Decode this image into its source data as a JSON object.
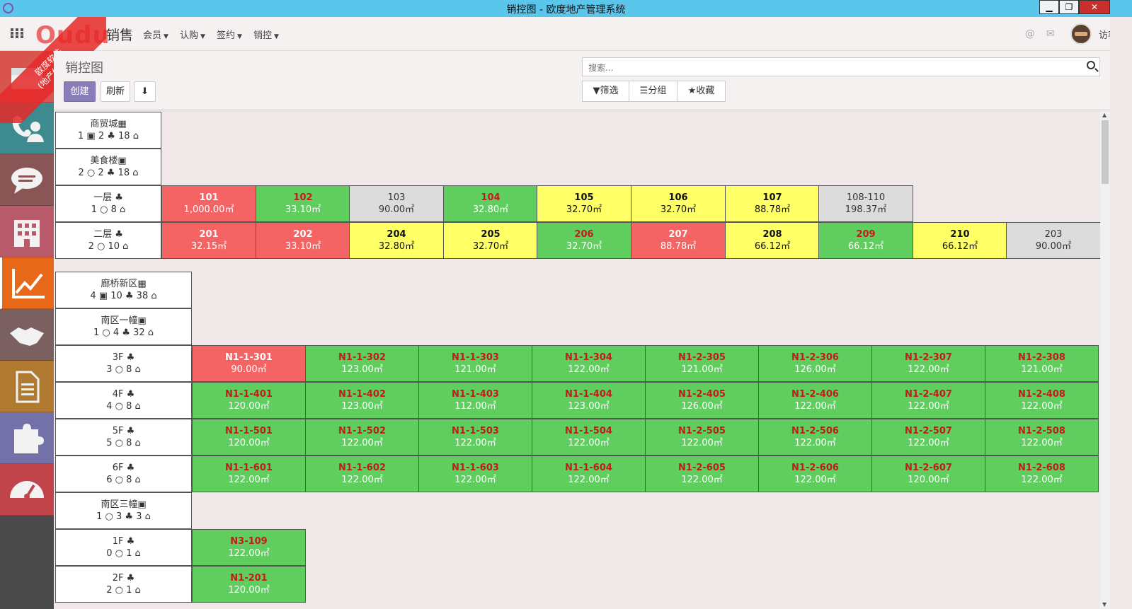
{
  "window": {
    "title": "销控图 - 欧度地产管理系统",
    "min": "▁",
    "max": "❐",
    "close": "✕"
  },
  "brand": {
    "logo": "Oudu",
    "ribbon_line1": "欧度软件",
    "ribbon_line2": "(地产体验版)",
    "module": "销售"
  },
  "menus": [
    "会员",
    "认购",
    "签约",
    "销控"
  ],
  "user": {
    "name": "访客"
  },
  "header": {
    "title": "销控图",
    "create": "创建",
    "refresh": "刷新",
    "download": "⬇"
  },
  "search": {
    "placeholder": "搜索..."
  },
  "filters": {
    "filter": "▼筛选",
    "group": "☰分组",
    "favorites": "★收藏"
  },
  "sidebar": {
    "icons": [
      "inbox-icon",
      "phone-contact-icon",
      "chat-icon",
      "building-icon",
      "chart-icon",
      "handshake-icon",
      "document-icon",
      "puzzle-icon",
      "dashboard-icon"
    ]
  },
  "project1": {
    "name": "商贸城▦",
    "stats": "1 ▣ 2 ♣ 18 ⌂",
    "building": {
      "name": "美食楼▣",
      "stats": "2 ○ 2 ♣ 18 ⌂"
    },
    "floors": [
      {
        "name": "一层 ♣",
        "stats": "1 ○ 8 ⌂",
        "units": [
          {
            "no": "101",
            "area": "1,000.00㎡",
            "status": "red"
          },
          {
            "no": "102",
            "area": "33.10㎡",
            "status": "green"
          },
          {
            "no": "103",
            "area": "90.00㎡",
            "status": "gray"
          },
          {
            "no": "104",
            "area": "32.80㎡",
            "status": "green"
          },
          {
            "no": "105",
            "area": "32.70㎡",
            "status": "yellow"
          },
          {
            "no": "106",
            "area": "32.70㎡",
            "status": "yellow"
          },
          {
            "no": "107",
            "area": "88.78㎡",
            "status": "yellow"
          },
          {
            "no": "108-110",
            "area": "198.37㎡",
            "status": "gray"
          }
        ]
      },
      {
        "name": "二层 ♣",
        "stats": "2 ○ 10 ⌂",
        "units": [
          {
            "no": "201",
            "area": "32.15㎡",
            "status": "red"
          },
          {
            "no": "202",
            "area": "33.10㎡",
            "status": "red"
          },
          {
            "no": "204",
            "area": "32.80㎡",
            "status": "yellow"
          },
          {
            "no": "205",
            "area": "32.70㎡",
            "status": "yellow"
          },
          {
            "no": "206",
            "area": "32.70㎡",
            "status": "green"
          },
          {
            "no": "207",
            "area": "88.78㎡",
            "status": "red"
          },
          {
            "no": "208",
            "area": "66.12㎡",
            "status": "yellow"
          },
          {
            "no": "209",
            "area": "66.12㎡",
            "status": "green"
          },
          {
            "no": "210",
            "area": "66.12㎡",
            "status": "yellow"
          },
          {
            "no": "203",
            "area": "90.00㎡",
            "status": "gray"
          }
        ]
      }
    ]
  },
  "project2": {
    "name": "廊桥新区▦",
    "stats": "4 ▣ 10 ♣ 38 ⌂",
    "building1": {
      "name": "南区一幢▣",
      "stats": "1 ○ 4 ♣ 32 ⌂"
    },
    "floors1": [
      {
        "name": "3F ♣",
        "stats": "3 ○ 8 ⌂",
        "units": [
          {
            "no": "N1-1-301",
            "area": "90.00㎡",
            "status": "red"
          },
          {
            "no": "N1-1-302",
            "area": "123.00㎡",
            "status": "green"
          },
          {
            "no": "N1-1-303",
            "area": "121.00㎡",
            "status": "green"
          },
          {
            "no": "N1-1-304",
            "area": "122.00㎡",
            "status": "green"
          },
          {
            "no": "N1-2-305",
            "area": "121.00㎡",
            "status": "green"
          },
          {
            "no": "N1-2-306",
            "area": "126.00㎡",
            "status": "green"
          },
          {
            "no": "N1-2-307",
            "area": "122.00㎡",
            "status": "green"
          },
          {
            "no": "N1-2-308",
            "area": "121.00㎡",
            "status": "green"
          }
        ]
      },
      {
        "name": "4F ♣",
        "stats": "4 ○ 8 ⌂",
        "units": [
          {
            "no": "N1-1-401",
            "area": "120.00㎡",
            "status": "green"
          },
          {
            "no": "N1-1-402",
            "area": "123.00㎡",
            "status": "green"
          },
          {
            "no": "N1-1-403",
            "area": "112.00㎡",
            "status": "green"
          },
          {
            "no": "N1-1-404",
            "area": "123.00㎡",
            "status": "green"
          },
          {
            "no": "N1-2-405",
            "area": "126.00㎡",
            "status": "green"
          },
          {
            "no": "N1-2-406",
            "area": "122.00㎡",
            "status": "green"
          },
          {
            "no": "N1-2-407",
            "area": "122.00㎡",
            "status": "green"
          },
          {
            "no": "N1-2-408",
            "area": "122.00㎡",
            "status": "green"
          }
        ]
      },
      {
        "name": "5F ♣",
        "stats": "5 ○ 8 ⌂",
        "units": [
          {
            "no": "N1-1-501",
            "area": "120.00㎡",
            "status": "green"
          },
          {
            "no": "N1-1-502",
            "area": "122.00㎡",
            "status": "green"
          },
          {
            "no": "N1-1-503",
            "area": "122.00㎡",
            "status": "green"
          },
          {
            "no": "N1-1-504",
            "area": "122.00㎡",
            "status": "green"
          },
          {
            "no": "N1-2-505",
            "area": "122.00㎡",
            "status": "green"
          },
          {
            "no": "N1-2-506",
            "area": "122.00㎡",
            "status": "green"
          },
          {
            "no": "N1-2-507",
            "area": "122.00㎡",
            "status": "green"
          },
          {
            "no": "N1-2-508",
            "area": "122.00㎡",
            "status": "green"
          }
        ]
      },
      {
        "name": "6F ♣",
        "stats": "6 ○ 8 ⌂",
        "units": [
          {
            "no": "N1-1-601",
            "area": "122.00㎡",
            "status": "green"
          },
          {
            "no": "N1-1-602",
            "area": "122.00㎡",
            "status": "green"
          },
          {
            "no": "N1-1-603",
            "area": "122.00㎡",
            "status": "green"
          },
          {
            "no": "N1-1-604",
            "area": "122.00㎡",
            "status": "green"
          },
          {
            "no": "N1-2-605",
            "area": "122.00㎡",
            "status": "green"
          },
          {
            "no": "N1-2-606",
            "area": "122.00㎡",
            "status": "green"
          },
          {
            "no": "N1-2-607",
            "area": "120.00㎡",
            "status": "green"
          },
          {
            "no": "N1-2-608",
            "area": "122.00㎡",
            "status": "green"
          }
        ]
      }
    ],
    "building3": {
      "name": "南区三幢▣",
      "stats": "1 ○ 3 ♣ 3 ⌂"
    },
    "floors3": [
      {
        "name": "1F ♣",
        "stats": "0 ○ 1 ⌂",
        "units": [
          {
            "no": "N3-109",
            "area": "122.00㎡",
            "status": "green"
          }
        ]
      },
      {
        "name": "2F ♣",
        "stats": "2 ○ 1 ⌂",
        "units": [
          {
            "no": "N1-201",
            "area": "120.00㎡",
            "status": "green"
          }
        ]
      }
    ]
  }
}
